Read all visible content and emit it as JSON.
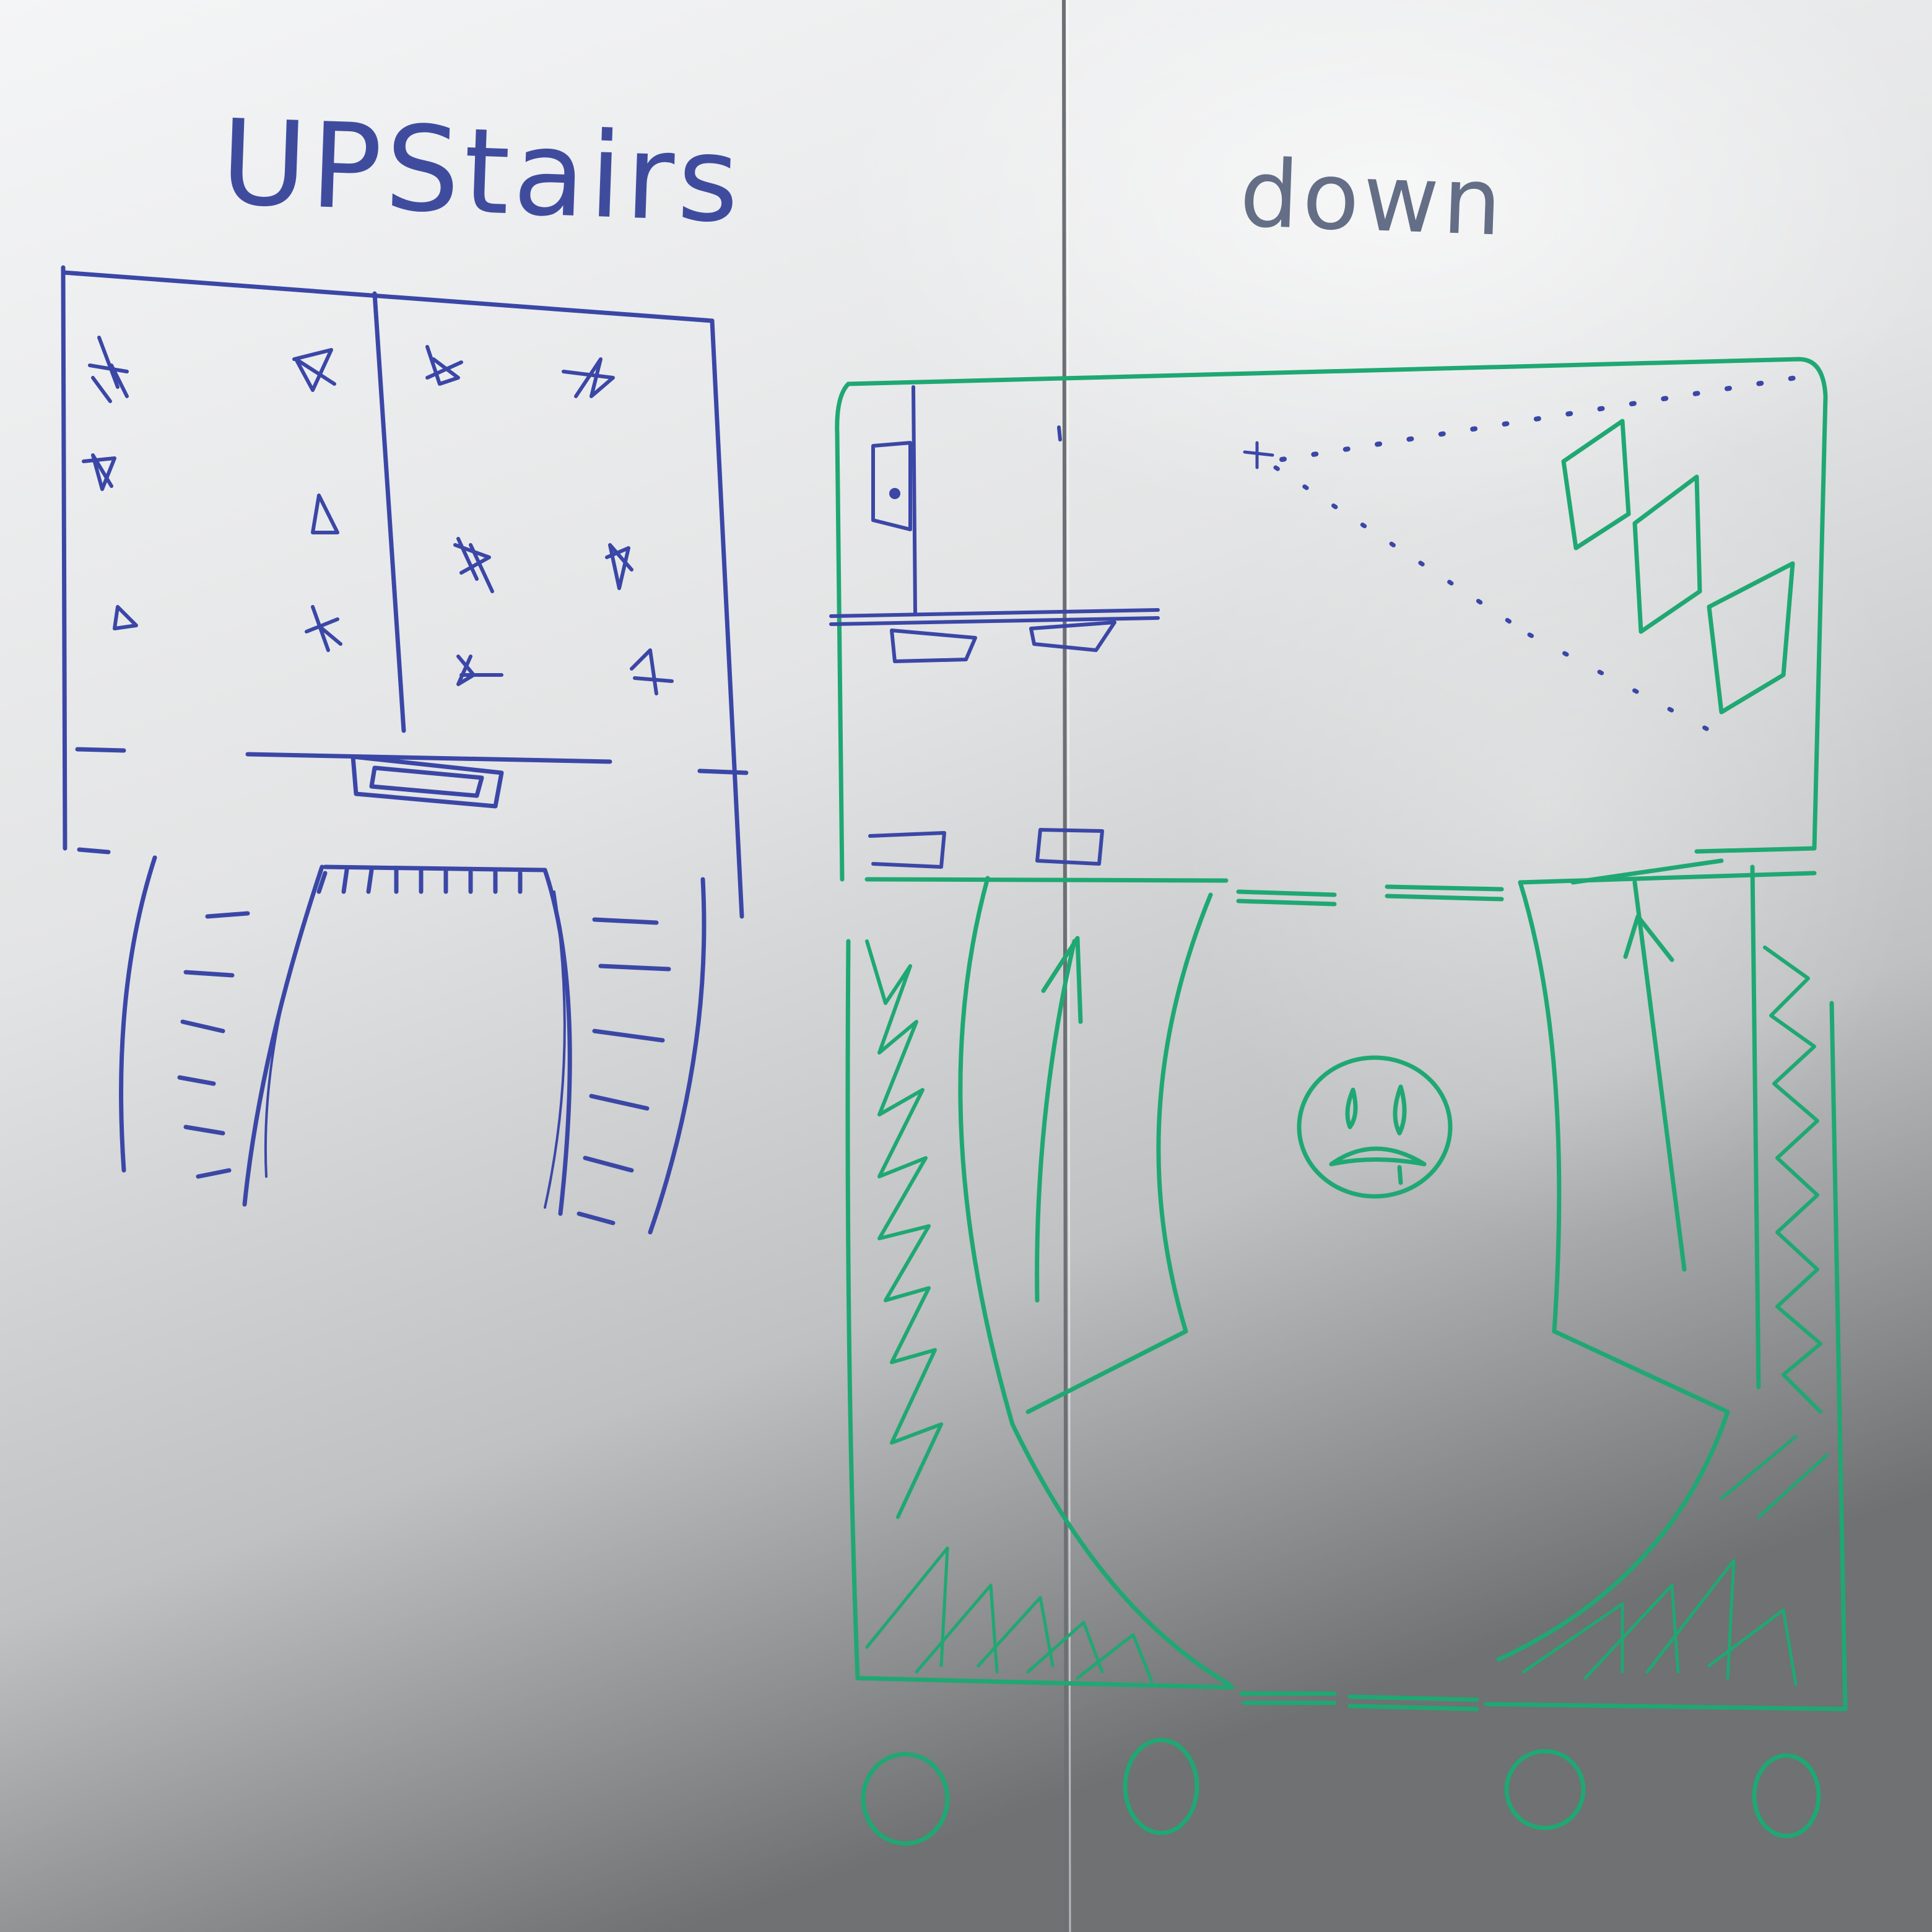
{
  "whiteboard": {
    "left_heading": "UPStairs",
    "right_heading": "down",
    "colors": {
      "left_marker": "#3b47a6",
      "right_marker": "#1fa873",
      "board_light": "#f1f2f3",
      "board_shadow": "#6d6f71"
    }
  }
}
